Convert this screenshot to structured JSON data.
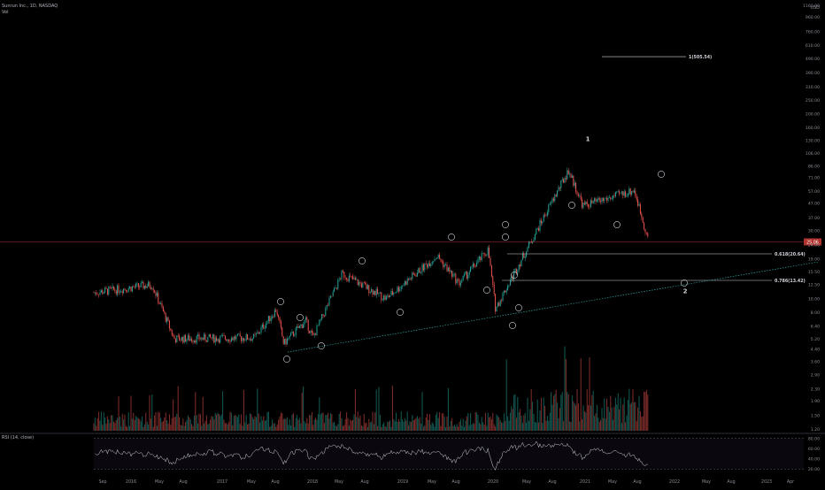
{
  "header": {
    "symbol_line": "Sunrun Inc., 1D, NASDAQ",
    "vol_label": "Vol"
  },
  "rsi_panel": {
    "label": "RSI (14, close)",
    "ticks": [
      "80.00",
      "60.00",
      "40.00",
      "20.00"
    ]
  },
  "price_axis": {
    "currency": "USD",
    "ticks": [
      "1160.00",
      "960.00",
      "760.00",
      "610.00",
      "490.00",
      "390.00",
      "310.00",
      "250.00",
      "200.00",
      "160.00",
      "130.00",
      "106.00",
      "86.00",
      "71.00",
      "57.00",
      "47.00",
      "37.00",
      "30.00",
      "24.00",
      "19.00",
      "15.50",
      "12.50",
      "10.00",
      "8.00",
      "6.40",
      "5.20",
      "4.40",
      "3.60",
      "2.90",
      "2.30",
      "1.90",
      "1.50",
      "1.20"
    ],
    "current_price_label": "25.06"
  },
  "chart_data": {
    "type": "line",
    "y_scale": "log",
    "time_axis_ticks": [
      "Sep",
      "2016",
      "May",
      "Aug",
      "2017",
      "May",
      "Aug",
      "2018",
      "May",
      "Aug",
      "2019",
      "May",
      "Aug",
      "2020",
      "May",
      "Aug",
      "2021",
      "May",
      "Aug",
      "2022",
      "May",
      "Aug",
      "2023",
      "Apr"
    ],
    "key_points": [
      {
        "x": "2015-08",
        "y": 11.0
      },
      {
        "x": "2016-04",
        "y": 12.5
      },
      {
        "x": "2016-07",
        "y": 5.2
      },
      {
        "x": "2017-06",
        "y": 5.3
      },
      {
        "x": "2017-09",
        "y": 8.4
      },
      {
        "x": "2017-10",
        "y": 4.8
      },
      {
        "x": "2018-01",
        "y": 7.0
      },
      {
        "x": "2018-02",
        "y": 5.3
      },
      {
        "x": "2018-06",
        "y": 15.0
      },
      {
        "x": "2018-12",
        "y": 10.0
      },
      {
        "x": "2019-07",
        "y": 20.0
      },
      {
        "x": "2019-10",
        "y": 12.8
      },
      {
        "x": "2020-02",
        "y": 22.0
      },
      {
        "x": "2020-03",
        "y": 8.5
      },
      {
        "x": "2021-01",
        "y": 80.0
      },
      {
        "x": "2021-03",
        "y": 45.0
      },
      {
        "x": "2021-06",
        "y": 50.0
      },
      {
        "x": "2021-10",
        "y": 58.0
      },
      {
        "x": "2021-12",
        "y": 25.06
      }
    ],
    "levels": [
      {
        "label": "1(505.54)",
        "value": 505.54
      },
      {
        "label": "0.618(20.64)",
        "value": 20.64
      },
      {
        "label": "0.786(13.42)",
        "value": 13.42
      }
    ],
    "wave_labels": [
      "ⓑ",
      "ⓘ",
      "ⓘ",
      "ⓘⓘ",
      "ⓘ",
      "ⓘⓘ",
      "ⓘⓘⓘ",
      "ⓘⓥ",
      "ⓥ",
      "ⓐ",
      "ⓑ",
      "ⓒ",
      "①",
      "②",
      "ⓘ",
      "ⓘⓘ",
      "ⓘⓥ",
      "1",
      "2"
    ],
    "rsi_range": [
      20,
      80
    ]
  }
}
